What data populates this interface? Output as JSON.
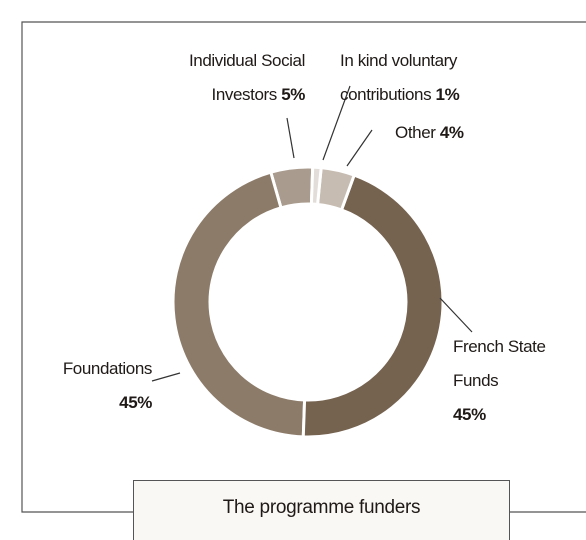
{
  "chart_data": {
    "type": "donut",
    "title": "The programme funders",
    "series": [
      {
        "name": "In kind voluntary contributions",
        "value": 1,
        "value_label": "1%",
        "color": "#e2ddd8"
      },
      {
        "name": "Other",
        "value": 4,
        "value_label": "4%",
        "color": "#c6bcb2"
      },
      {
        "name": "French State Funds",
        "value": 45,
        "value_label": "45%",
        "color": "#75624f"
      },
      {
        "name": "Foundations",
        "value": 45,
        "value_label": "45%",
        "color": "#8d7b69"
      },
      {
        "name": "Individual Social Investors",
        "value": 5,
        "value_label": "5%",
        "color": "#a99b8d"
      }
    ]
  }
}
